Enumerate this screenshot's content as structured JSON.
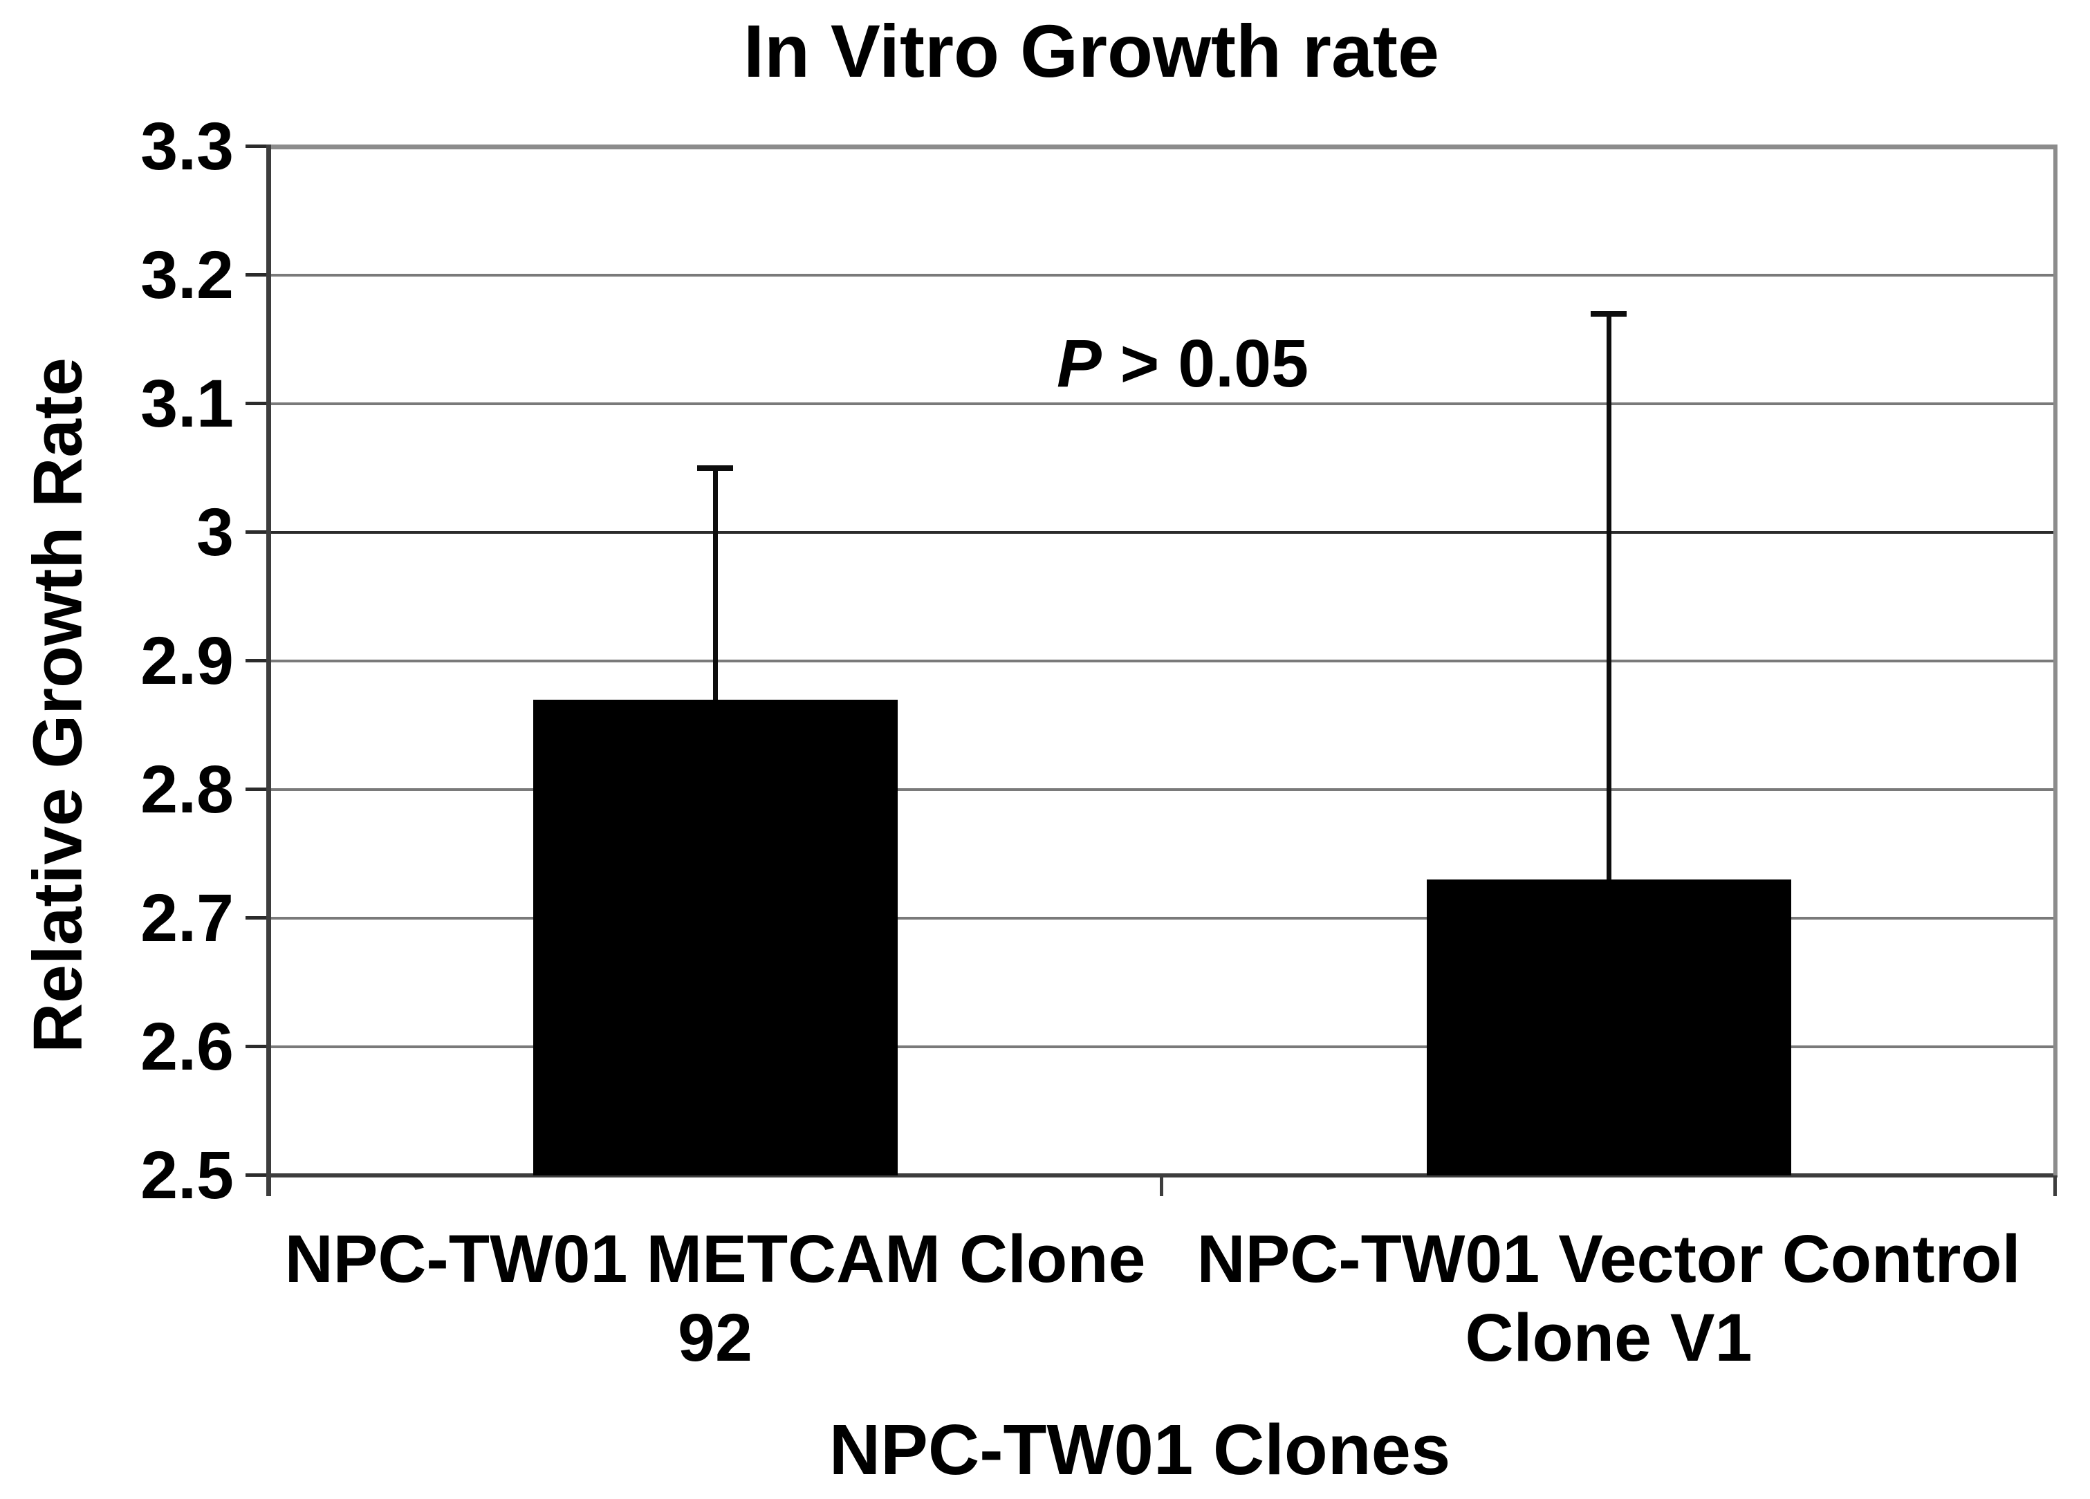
{
  "chart_data": {
    "type": "bar",
    "title": "In Vitro Growth rate",
    "ylabel": "Relative Growth Rate",
    "xlabel": "NPC-TW01 Clones",
    "categories": [
      "NPC-TW01 METCAM Clone\n92",
      "NPC-TW01 Vector Control\nClone V1"
    ],
    "values": [
      2.87,
      2.73
    ],
    "error_plus": [
      0.18,
      0.44
    ],
    "error_bar_tops": [
      3.05,
      3.17
    ],
    "ylim": [
      2.5,
      3.3
    ],
    "ytick_step": 0.1,
    "ytick_labels": [
      "2.5",
      "2.6",
      "2.7",
      "2.8",
      "2.9",
      "3",
      "3.1",
      "3.2",
      "3.3"
    ],
    "annotation": {
      "p": "P",
      "rest": " > 0.05"
    },
    "grid": "horizontal",
    "legend": false,
    "colors": {
      "bar": "#000000",
      "error_bar": "#0d0d0d",
      "gridline": "#7a7a7a",
      "gridline_integer": "#2b2b2b",
      "frame": "#8c8c8c",
      "axis": "#3d3d3d",
      "text": "#000000",
      "background": "#ffffff"
    }
  }
}
